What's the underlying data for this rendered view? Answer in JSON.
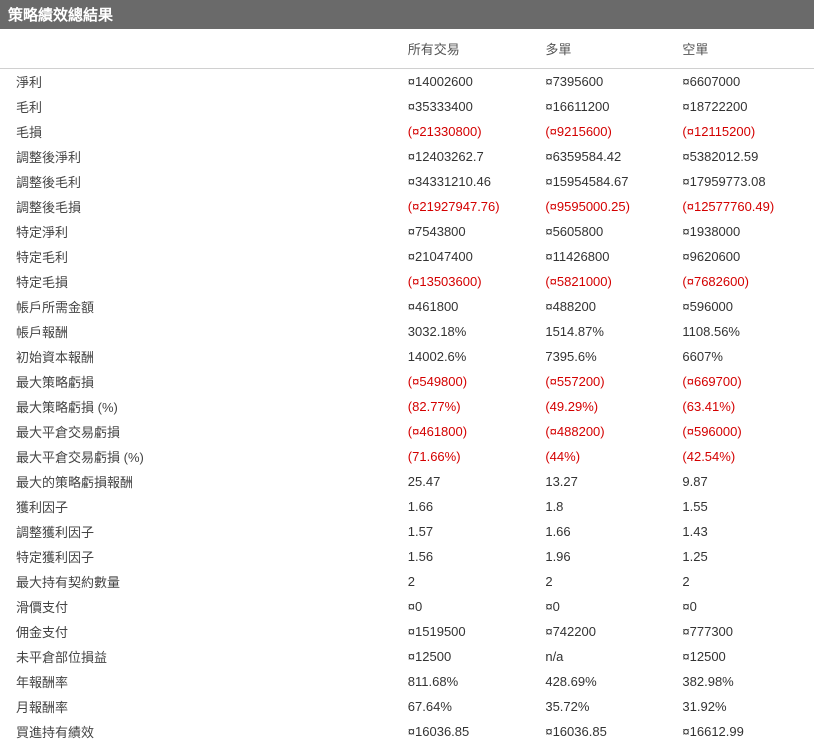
{
  "title": "策略績效總結果",
  "columns": [
    "",
    "所有交易",
    "多單",
    "空單"
  ],
  "rows": [
    {
      "label": "淨利",
      "vals": [
        "¤14002600",
        "¤7395600",
        "¤6607000"
      ],
      "neg": [
        false,
        false,
        false
      ]
    },
    {
      "label": "毛利",
      "vals": [
        "¤35333400",
        "¤16611200",
        "¤18722200"
      ],
      "neg": [
        false,
        false,
        false
      ]
    },
    {
      "label": "毛損",
      "vals": [
        "(¤21330800)",
        "(¤9215600)",
        "(¤12115200)"
      ],
      "neg": [
        true,
        true,
        true
      ]
    },
    {
      "label": "調整後淨利",
      "vals": [
        "¤12403262.7",
        "¤6359584.42",
        "¤5382012.59"
      ],
      "neg": [
        false,
        false,
        false
      ]
    },
    {
      "label": "調整後毛利",
      "vals": [
        "¤34331210.46",
        "¤15954584.67",
        "¤17959773.08"
      ],
      "neg": [
        false,
        false,
        false
      ]
    },
    {
      "label": "調整後毛損",
      "vals": [
        "(¤21927947.76)",
        "(¤9595000.25)",
        "(¤12577760.49)"
      ],
      "neg": [
        true,
        true,
        true
      ]
    },
    {
      "label": "特定淨利",
      "vals": [
        "¤7543800",
        "¤5605800",
        "¤1938000"
      ],
      "neg": [
        false,
        false,
        false
      ]
    },
    {
      "label": "特定毛利",
      "vals": [
        "¤21047400",
        "¤11426800",
        "¤9620600"
      ],
      "neg": [
        false,
        false,
        false
      ]
    },
    {
      "label": "特定毛損",
      "vals": [
        "(¤13503600)",
        "(¤5821000)",
        "(¤7682600)"
      ],
      "neg": [
        true,
        true,
        true
      ]
    },
    {
      "label": "帳戶所需金額",
      "vals": [
        "¤461800",
        "¤488200",
        "¤596000"
      ],
      "neg": [
        false,
        false,
        false
      ]
    },
    {
      "label": "帳戶報酬",
      "vals": [
        "3032.18%",
        "1514.87%",
        "1108.56%"
      ],
      "neg": [
        false,
        false,
        false
      ]
    },
    {
      "label": "初始資本報酬",
      "vals": [
        "14002.6%",
        "7395.6%",
        "6607%"
      ],
      "neg": [
        false,
        false,
        false
      ]
    },
    {
      "label": "最大策略虧損",
      "vals": [
        "(¤549800)",
        "(¤557200)",
        "(¤669700)"
      ],
      "neg": [
        true,
        true,
        true
      ]
    },
    {
      "label": "最大策略虧損 (%)",
      "vals": [
        "(82.77%)",
        "(49.29%)",
        "(63.41%)"
      ],
      "neg": [
        true,
        true,
        true
      ]
    },
    {
      "label": "最大平倉交易虧損",
      "vals": [
        "(¤461800)",
        "(¤488200)",
        "(¤596000)"
      ],
      "neg": [
        true,
        true,
        true
      ]
    },
    {
      "label": "最大平倉交易虧損 (%)",
      "vals": [
        "(71.66%)",
        "(44%)",
        "(42.54%)"
      ],
      "neg": [
        true,
        true,
        true
      ]
    },
    {
      "label": "最大的策略虧損報酬",
      "vals": [
        "25.47",
        "13.27",
        "9.87"
      ],
      "neg": [
        false,
        false,
        false
      ]
    },
    {
      "label": "獲利因子",
      "vals": [
        "1.66",
        "1.8",
        "1.55"
      ],
      "neg": [
        false,
        false,
        false
      ]
    },
    {
      "label": "調整獲利因子",
      "vals": [
        "1.57",
        "1.66",
        "1.43"
      ],
      "neg": [
        false,
        false,
        false
      ]
    },
    {
      "label": "特定獲利因子",
      "vals": [
        "1.56",
        "1.96",
        "1.25"
      ],
      "neg": [
        false,
        false,
        false
      ]
    },
    {
      "label": "最大持有契約數量",
      "vals": [
        "2",
        "2",
        "2"
      ],
      "neg": [
        false,
        false,
        false
      ]
    },
    {
      "label": "滑價支付",
      "vals": [
        "¤0",
        "¤0",
        "¤0"
      ],
      "neg": [
        false,
        false,
        false
      ]
    },
    {
      "label": "佣金支付",
      "vals": [
        "¤1519500",
        "¤742200",
        "¤777300"
      ],
      "neg": [
        false,
        false,
        false
      ]
    },
    {
      "label": "未平倉部位損益",
      "vals": [
        "¤12500",
        "n/a",
        "¤12500"
      ],
      "neg": [
        false,
        false,
        false
      ]
    },
    {
      "label": "年報酬率",
      "vals": [
        "811.68%",
        "428.69%",
        "382.98%"
      ],
      "neg": [
        false,
        false,
        false
      ]
    },
    {
      "label": "月報酬率",
      "vals": [
        "67.64%",
        "35.72%",
        "31.92%"
      ],
      "neg": [
        false,
        false,
        false
      ]
    },
    {
      "label": "買進持有績效",
      "vals": [
        "¤16036.85",
        "¤16036.85",
        "¤16612.99"
      ],
      "neg": [
        false,
        false,
        false
      ]
    }
  ],
  "style": {
    "title_bg": "#6a6a6a",
    "title_fg": "#ffffff",
    "neg_color": "#d40000",
    "text_color": "#333333",
    "border_color": "#d0d0d0",
    "font_size_body": 13,
    "font_size_title": 15
  }
}
